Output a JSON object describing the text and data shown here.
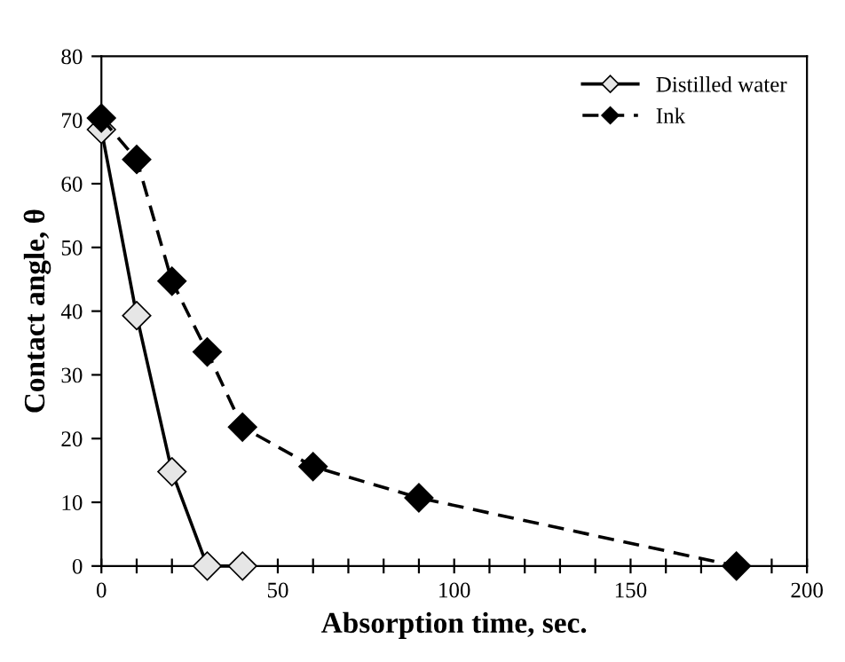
{
  "chart_data": {
    "type": "line",
    "xlabel": "Absorption time, sec.",
    "ylabel": "Contact angle, θ",
    "xlim": [
      0,
      200
    ],
    "ylim": [
      0,
      80
    ],
    "xticks": [
      0,
      {
        "value": 10,
        "label": null
      },
      {
        "value": 20,
        "label": null
      },
      {
        "value": 30,
        "label": null
      },
      {
        "value": 40,
        "label": null
      },
      50,
      {
        "value": 60,
        "label": null
      },
      {
        "value": 70,
        "label": null
      },
      {
        "value": 80,
        "label": null
      },
      {
        "value": 90,
        "label": null
      },
      100,
      {
        "value": 110,
        "label": null
      },
      {
        "value": 120,
        "label": null
      },
      {
        "value": 130,
        "label": null
      },
      {
        "value": 140,
        "label": null
      },
      150,
      {
        "value": 160,
        "label": null
      },
      {
        "value": 170,
        "label": null
      },
      {
        "value": 180,
        "label": null
      },
      {
        "value": 190,
        "label": null
      },
      200
    ],
    "yticks": [
      0,
      10,
      20,
      30,
      40,
      50,
      60,
      70,
      80
    ],
    "grid": false,
    "legend": "top right",
    "marker": "diamond",
    "series": [
      {
        "name": "Distilled water",
        "color": "#e6e6e6",
        "line_style": "solid",
        "x": [
          0,
          10,
          20,
          30,
          40
        ],
        "values": [
          68.5,
          39.3,
          14.8,
          0,
          0
        ]
      },
      {
        "name": "Ink",
        "color": "#000000",
        "line_style": "dashed",
        "x": [
          0,
          10,
          20,
          30,
          40,
          60,
          90,
          180
        ],
        "values": [
          70.3,
          63.8,
          44.7,
          33.6,
          21.8,
          15.6,
          10.7,
          0
        ]
      }
    ]
  }
}
